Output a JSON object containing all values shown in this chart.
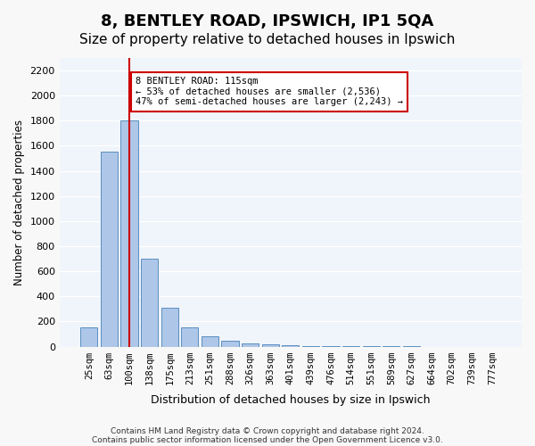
{
  "title1": "8, BENTLEY ROAD, IPSWICH, IP1 5QA",
  "title2": "Size of property relative to detached houses in Ipswich",
  "xlabel": "Distribution of detached houses by size in Ipswich",
  "ylabel": "Number of detached properties",
  "categories": [
    "25sqm",
    "63sqm",
    "100sqm",
    "138sqm",
    "175sqm",
    "213sqm",
    "251sqm",
    "288sqm",
    "326sqm",
    "363sqm",
    "401sqm",
    "439sqm",
    "476sqm",
    "514sqm",
    "551sqm",
    "589sqm",
    "627sqm",
    "664sqm",
    "702sqm",
    "739sqm",
    "777sqm"
  ],
  "values": [
    150,
    1550,
    1800,
    700,
    310,
    155,
    80,
    45,
    25,
    20,
    10,
    5,
    3,
    2,
    1,
    1,
    1,
    0,
    0,
    0,
    0
  ],
  "bar_color": "#aec6e8",
  "bar_edge_color": "#5a8fc0",
  "red_line_index": 2,
  "annotation_text": "8 BENTLEY ROAD: 115sqm\n← 53% of detached houses are smaller (2,536)\n47% of semi-detached houses are larger (2,243) →",
  "annotation_box_color": "#ffffff",
  "annotation_box_edge": "#cc0000",
  "red_line_color": "#cc0000",
  "footer1": "Contains HM Land Registry data © Crown copyright and database right 2024.",
  "footer2": "Contains public sector information licensed under the Open Government Licence v3.0.",
  "ylim": [
    0,
    2300
  ],
  "yticks": [
    0,
    200,
    400,
    600,
    800,
    1000,
    1200,
    1400,
    1600,
    1800,
    2000,
    2200
  ],
  "bg_color": "#f0f4fb",
  "grid_color": "#ffffff",
  "title1_fontsize": 13,
  "title2_fontsize": 11
}
